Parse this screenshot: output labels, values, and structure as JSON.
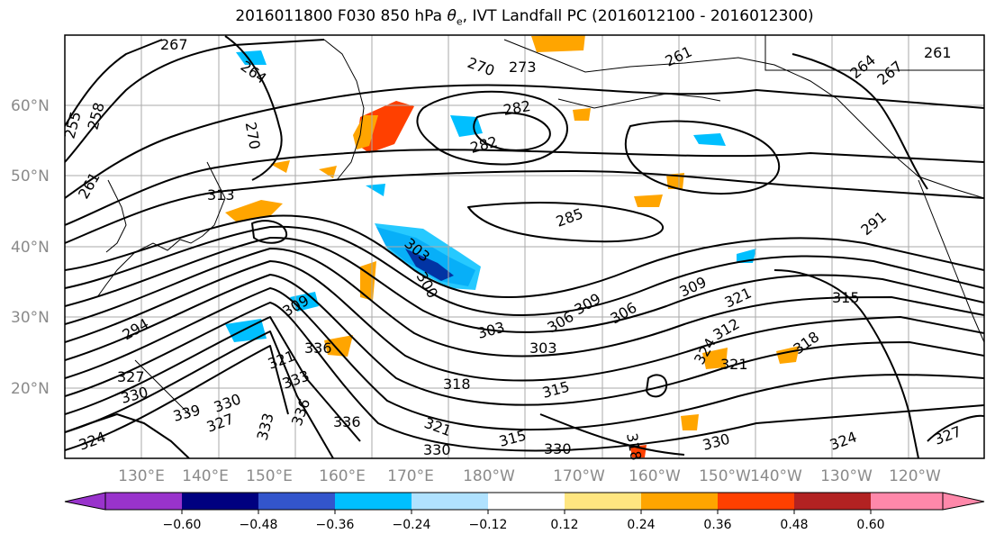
{
  "title_main": "2016011800 F030 850 hPa",
  "title_symbol": "θ",
  "title_subscript": "e",
  "title_rest": ", IVT Landfall PC (2016012100 - 2016012300)",
  "lat_labels": [
    "60°N",
    "50°N",
    "40°N",
    "30°N",
    "20°N"
  ],
  "lon_labels": [
    "130°E",
    "140°E",
    "150°E",
    "160°E",
    "170°E",
    "180°W",
    "170°W",
    "160°W",
    "150°W",
    "140°W",
    "130°W",
    "120°W"
  ],
  "colorbar": {
    "colors": [
      "#9933cc",
      "#000080",
      "#3355cc",
      "#00bfff",
      "#b0e2ff",
      "#ffffff",
      "#ffe680",
      "#ffa500",
      "#ff4000",
      "#b22222",
      "#ff88aa"
    ],
    "tick_labels": [
      "−0.60",
      "−0.48",
      "−0.36",
      "−0.24",
      "−0.12",
      "0.12",
      "0.24",
      "0.36",
      "0.48",
      "0.60"
    ]
  },
  "contour_labels": [
    "267",
    "264",
    "270",
    "273",
    "261",
    "264",
    "267",
    "261",
    "255",
    "258",
    "270",
    "282",
    "282",
    "261",
    "313",
    "285",
    "291",
    "303",
    "309",
    "300",
    "294",
    "309",
    "321",
    "315",
    "303",
    "306",
    "306",
    "312",
    "309",
    "303",
    "318",
    "318",
    "327",
    "321",
    "336",
    "330",
    "333",
    "336",
    "339",
    "330",
    "333",
    "336",
    "315",
    "318",
    "321",
    "324",
    "330",
    "315",
    "330",
    "330",
    "324",
    "327",
    "324",
    "321",
    "327"
  ]
}
